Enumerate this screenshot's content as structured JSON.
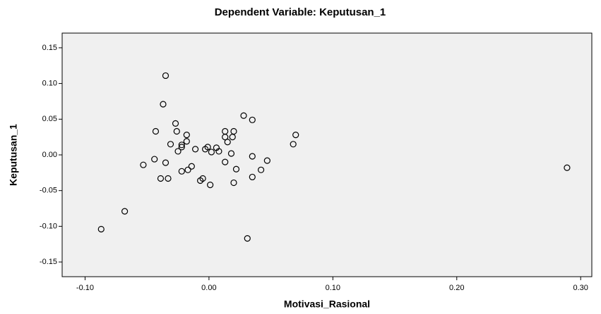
{
  "chart_data": {
    "type": "scatter",
    "title": "Dependent Variable: Keputusan_1",
    "x_label": "Motivasi_Rasional",
    "y_label": "Keputusan_1",
    "x": [
      -0.035,
      -0.037,
      -0.043,
      -0.027,
      -0.026,
      -0.018,
      -0.031,
      -0.022,
      -0.018,
      -0.025,
      -0.022,
      -0.011,
      -0.003,
      -0.001,
      0.002,
      0.006,
      0.008,
      0.013,
      0.013,
      0.015,
      0.019,
      0.02,
      0.018,
      0.028,
      0.035,
      0.035,
      0.013,
      0.022,
      0.047,
      0.042,
      0.035,
      0.02,
      0.001,
      -0.005,
      -0.007,
      -0.014,
      -0.017,
      -0.022,
      -0.033,
      -0.039,
      -0.035,
      -0.044,
      -0.053,
      -0.068,
      -0.087,
      0.031,
      0.068,
      0.07,
      0.289
    ],
    "values": [
      0.111,
      0.071,
      0.033,
      0.044,
      0.033,
      0.028,
      0.015,
      0.014,
      0.019,
      0.005,
      0.011,
      0.008,
      0.008,
      0.011,
      0.004,
      0.01,
      0.005,
      0.033,
      0.025,
      0.018,
      0.025,
      0.033,
      0.002,
      0.055,
      0.049,
      -0.002,
      -0.01,
      -0.02,
      -0.008,
      -0.021,
      -0.031,
      -0.039,
      -0.042,
      -0.033,
      -0.036,
      -0.016,
      -0.021,
      -0.023,
      -0.033,
      -0.033,
      -0.011,
      -0.006,
      -0.014,
      -0.079,
      -0.104,
      -0.117,
      0.015,
      0.028,
      -0.018
    ],
    "color": "#000000",
    "xlim": [
      -0.1185,
      0.309
    ],
    "ylim": [
      -0.1706,
      0.1706
    ],
    "xticks": [
      {
        "value": -0.1,
        "label": "-0.10"
      },
      {
        "value": 0,
        "label": "0.00"
      },
      {
        "value": 0.1,
        "label": "0.10"
      },
      {
        "value": 0.2,
        "label": "0.20"
      },
      {
        "value": 0.3,
        "label": "0.30"
      }
    ],
    "yticks": [
      -0.15,
      {
        "value": -0.1,
        "label": "-0.10"
      },
      -0.05,
      {
        "value": 0,
        "label": "0.00"
      },
      0.05,
      {
        "value": 0.1,
        "label": "0.10"
      },
      0.15
    ],
    "grid": false
  }
}
